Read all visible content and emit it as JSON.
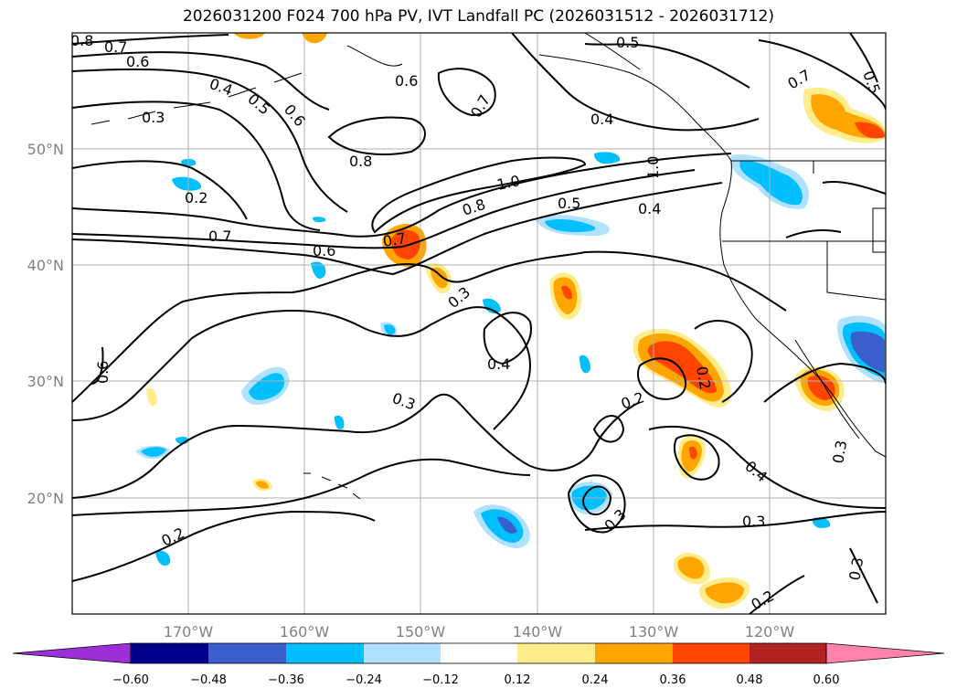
{
  "title": "2026031200 F024 700 hPa PV, IVT Landfall PC (2026031512 - 2026031712)",
  "map": {
    "lon_range": [
      -180,
      -110
    ],
    "lat_range": [
      10,
      60
    ],
    "lon_ticks": [
      {
        "lon": -170,
        "label": "170°W"
      },
      {
        "lon": -160,
        "label": "160°W"
      },
      {
        "lon": -150,
        "label": "150°W"
      },
      {
        "lon": -140,
        "label": "140°W"
      },
      {
        "lon": -130,
        "label": "130°W"
      },
      {
        "lon": -120,
        "label": "120°W"
      }
    ],
    "lat_ticks": [
      {
        "lat": 50,
        "label": "50°N"
      },
      {
        "lat": 40,
        "label": "40°N"
      },
      {
        "lat": 30,
        "label": "30°N"
      },
      {
        "lat": 20,
        "label": "20°N"
      }
    ],
    "gridlines": true,
    "contour_labels": [
      "0.8",
      "0.7",
      "0.6",
      "0.5",
      "0.4",
      "0.3",
      "0.6",
      "0.2",
      "0.7",
      "0.6",
      "0.8",
      "1.0",
      "0.8",
      "0.5",
      "0.4",
      "0.7",
      "0.3",
      "0.3",
      "0.4",
      "0.6",
      "0.3",
      "0.2",
      "0.2",
      "0.4",
      "0.3",
      "0.3",
      "0.3",
      "0.2",
      "0.2",
      "0.5",
      "0.6",
      "0.5",
      "0.7",
      "0.4",
      "1.0",
      "0.7"
    ]
  },
  "colorbar": {
    "colors": [
      "#9b30d9",
      "#00008b",
      "#3a5fcd",
      "#00bfff",
      "#b0e2ff",
      "#ffffff",
      "#ffec8b",
      "#ffa500",
      "#ff4500",
      "#b22222",
      "#ff82ab"
    ],
    "tick_labels": [
      "−0.60",
      "−0.48",
      "−0.36",
      "−0.24",
      "−0.12",
      "0.12",
      "0.24",
      "0.36",
      "0.48",
      "0.60"
    ]
  },
  "colors": {
    "positive_light": "#ffec8b",
    "positive_mid": "#ffa500",
    "positive_strong": "#ff4500",
    "negative_light": "#b0e2ff",
    "negative_mid": "#00bfff",
    "negative_strong": "#3a5fcd"
  }
}
